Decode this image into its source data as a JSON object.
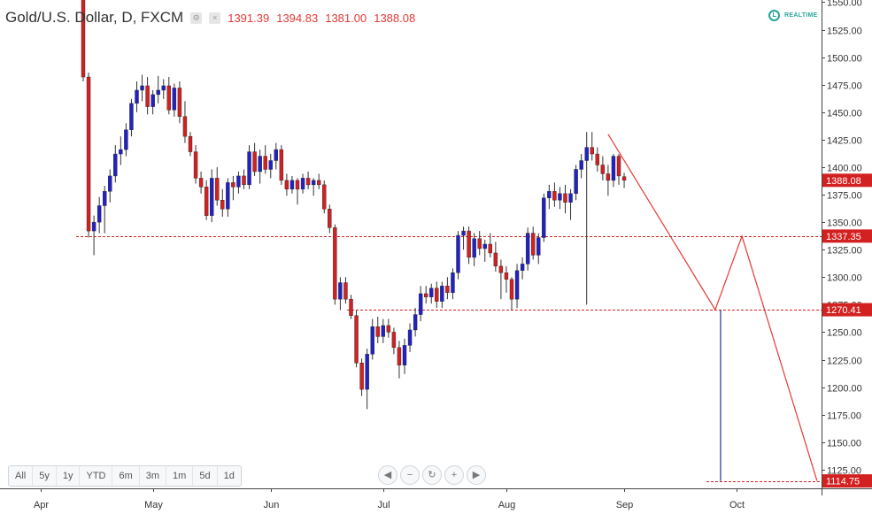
{
  "header": {
    "symbol": "Gold/U.S. Dollar, D, FXCM",
    "open": "1391.39",
    "high": "1394.83",
    "low": "1381.00",
    "close": "1388.08",
    "realtime": "REALTIME"
  },
  "toolbar": {
    "timeframes": [
      "All",
      "5y",
      "1y",
      "YTD",
      "6m",
      "3m",
      "1m",
      "5d",
      "1d"
    ],
    "nav": [
      {
        "name": "scroll-left-icon",
        "glyph": "◀"
      },
      {
        "name": "zoom-out-icon",
        "glyph": "−"
      },
      {
        "name": "reset-icon",
        "glyph": "↻"
      },
      {
        "name": "zoom-in-icon",
        "glyph": "+"
      },
      {
        "name": "scroll-right-icon",
        "glyph": "▶"
      }
    ]
  },
  "chart_data": {
    "type": "candlestick",
    "title": "Gold/U.S. Dollar, D, FXCM",
    "xlabel": "",
    "ylabel": "",
    "ylim": [
      1108,
      1552
    ],
    "y_ticks": [
      1125,
      1150,
      1175,
      1200,
      1225,
      1250,
      1275,
      1300,
      1325,
      1350,
      1375,
      1400,
      1425,
      1450,
      1475,
      1500,
      1525,
      1550
    ],
    "x_ticks": [
      {
        "label": "Apr",
        "index": -8
      },
      {
        "label": "May",
        "index": 13
      },
      {
        "label": "Jun",
        "index": 35
      },
      {
        "label": "Jul",
        "index": 56
      },
      {
        "label": "Aug",
        "index": 79
      },
      {
        "label": "Sep",
        "index": 101
      },
      {
        "label": "Oct",
        "index": 122
      }
    ],
    "price_labels": [
      {
        "label": "1388.08",
        "value": 1388.08
      },
      {
        "label": "1337.35",
        "value": 1337.35
      },
      {
        "label": "1270.41",
        "value": 1270.41
      },
      {
        "label": "1114.75",
        "value": 1114.75
      }
    ],
    "levels": [
      1337.35,
      1270.41,
      1114.75
    ],
    "projection": [
      {
        "index": 98,
        "value": 1430
      },
      {
        "index": 118,
        "value": 1270.41
      },
      {
        "index": 123,
        "value": 1337.35
      },
      {
        "index": 137,
        "value": 1114.75
      }
    ],
    "measure": {
      "index": 119,
      "from": 1270.41,
      "to": 1114.75
    },
    "colors": {
      "up": "#2121c4",
      "down": "#d32020",
      "level": "#d32020",
      "projection": "#e53935",
      "measure": "#2929a3",
      "label_bg": "#d32020"
    },
    "candles": [
      {
        "o": 1563,
        "h": 1570,
        "l": 1478,
        "c": 1482
      },
      {
        "o": 1482,
        "h": 1486,
        "l": 1336,
        "c": 1342
      },
      {
        "o": 1342,
        "h": 1356,
        "l": 1320,
        "c": 1350
      },
      {
        "o": 1350,
        "h": 1373,
        "l": 1340,
        "c": 1365
      },
      {
        "o": 1365,
        "h": 1383,
        "l": 1340,
        "c": 1378
      },
      {
        "o": 1378,
        "h": 1398,
        "l": 1368,
        "c": 1392
      },
      {
        "o": 1392,
        "h": 1420,
        "l": 1386,
        "c": 1412
      },
      {
        "o": 1412,
        "h": 1428,
        "l": 1402,
        "c": 1416
      },
      {
        "o": 1416,
        "h": 1440,
        "l": 1410,
        "c": 1434
      },
      {
        "o": 1434,
        "h": 1462,
        "l": 1428,
        "c": 1458
      },
      {
        "o": 1458,
        "h": 1478,
        "l": 1450,
        "c": 1470
      },
      {
        "o": 1470,
        "h": 1484,
        "l": 1460,
        "c": 1474
      },
      {
        "o": 1474,
        "h": 1482,
        "l": 1448,
        "c": 1455
      },
      {
        "o": 1455,
        "h": 1470,
        "l": 1448,
        "c": 1466
      },
      {
        "o": 1466,
        "h": 1483,
        "l": 1458,
        "c": 1470
      },
      {
        "o": 1470,
        "h": 1480,
        "l": 1462,
        "c": 1474
      },
      {
        "o": 1474,
        "h": 1482,
        "l": 1448,
        "c": 1452
      },
      {
        "o": 1452,
        "h": 1476,
        "l": 1446,
        "c": 1472
      },
      {
        "o": 1472,
        "h": 1478,
        "l": 1440,
        "c": 1446
      },
      {
        "o": 1446,
        "h": 1460,
        "l": 1422,
        "c": 1428
      },
      {
        "o": 1428,
        "h": 1432,
        "l": 1410,
        "c": 1414
      },
      {
        "o": 1414,
        "h": 1420,
        "l": 1385,
        "c": 1390
      },
      {
        "o": 1390,
        "h": 1396,
        "l": 1376,
        "c": 1382
      },
      {
        "o": 1382,
        "h": 1388,
        "l": 1352,
        "c": 1356
      },
      {
        "o": 1356,
        "h": 1398,
        "l": 1350,
        "c": 1390
      },
      {
        "o": 1390,
        "h": 1400,
        "l": 1365,
        "c": 1370
      },
      {
        "o": 1370,
        "h": 1380,
        "l": 1355,
        "c": 1362
      },
      {
        "o": 1362,
        "h": 1390,
        "l": 1355,
        "c": 1386
      },
      {
        "o": 1386,
        "h": 1392,
        "l": 1370,
        "c": 1382
      },
      {
        "o": 1382,
        "h": 1396,
        "l": 1376,
        "c": 1392
      },
      {
        "o": 1392,
        "h": 1398,
        "l": 1380,
        "c": 1384
      },
      {
        "o": 1384,
        "h": 1420,
        "l": 1380,
        "c": 1414
      },
      {
        "o": 1414,
        "h": 1422,
        "l": 1392,
        "c": 1396
      },
      {
        "o": 1396,
        "h": 1416,
        "l": 1385,
        "c": 1410
      },
      {
        "o": 1410,
        "h": 1420,
        "l": 1394,
        "c": 1398
      },
      {
        "o": 1398,
        "h": 1412,
        "l": 1390,
        "c": 1406
      },
      {
        "o": 1406,
        "h": 1422,
        "l": 1398,
        "c": 1416
      },
      {
        "o": 1416,
        "h": 1420,
        "l": 1384,
        "c": 1388
      },
      {
        "o": 1388,
        "h": 1394,
        "l": 1374,
        "c": 1380
      },
      {
        "o": 1380,
        "h": 1392,
        "l": 1376,
        "c": 1388
      },
      {
        "o": 1388,
        "h": 1390,
        "l": 1366,
        "c": 1380
      },
      {
        "o": 1380,
        "h": 1394,
        "l": 1376,
        "c": 1390
      },
      {
        "o": 1390,
        "h": 1396,
        "l": 1380,
        "c": 1384
      },
      {
        "o": 1384,
        "h": 1390,
        "l": 1374,
        "c": 1388
      },
      {
        "o": 1388,
        "h": 1394,
        "l": 1380,
        "c": 1384
      },
      {
        "o": 1384,
        "h": 1388,
        "l": 1358,
        "c": 1362
      },
      {
        "o": 1362,
        "h": 1366,
        "l": 1340,
        "c": 1345
      },
      {
        "o": 1345,
        "h": 1348,
        "l": 1275,
        "c": 1280
      },
      {
        "o": 1280,
        "h": 1300,
        "l": 1270,
        "c": 1295
      },
      {
        "o": 1295,
        "h": 1300,
        "l": 1276,
        "c": 1280
      },
      {
        "o": 1280,
        "h": 1284,
        "l": 1262,
        "c": 1265
      },
      {
        "o": 1265,
        "h": 1270,
        "l": 1218,
        "c": 1222
      },
      {
        "o": 1222,
        "h": 1226,
        "l": 1192,
        "c": 1198
      },
      {
        "o": 1198,
        "h": 1235,
        "l": 1180,
        "c": 1230
      },
      {
        "o": 1230,
        "h": 1262,
        "l": 1225,
        "c": 1255
      },
      {
        "o": 1255,
        "h": 1264,
        "l": 1240,
        "c": 1246
      },
      {
        "o": 1246,
        "h": 1262,
        "l": 1240,
        "c": 1256
      },
      {
        "o": 1256,
        "h": 1262,
        "l": 1245,
        "c": 1250
      },
      {
        "o": 1250,
        "h": 1254,
        "l": 1230,
        "c": 1236
      },
      {
        "o": 1236,
        "h": 1242,
        "l": 1208,
        "c": 1220
      },
      {
        "o": 1220,
        "h": 1244,
        "l": 1212,
        "c": 1238
      },
      {
        "o": 1238,
        "h": 1258,
        "l": 1232,
        "c": 1252
      },
      {
        "o": 1252,
        "h": 1272,
        "l": 1246,
        "c": 1266
      },
      {
        "o": 1266,
        "h": 1292,
        "l": 1260,
        "c": 1285
      },
      {
        "o": 1285,
        "h": 1292,
        "l": 1276,
        "c": 1282
      },
      {
        "o": 1282,
        "h": 1294,
        "l": 1276,
        "c": 1290
      },
      {
        "o": 1290,
        "h": 1296,
        "l": 1272,
        "c": 1278
      },
      {
        "o": 1278,
        "h": 1296,
        "l": 1272,
        "c": 1292
      },
      {
        "o": 1292,
        "h": 1300,
        "l": 1280,
        "c": 1286
      },
      {
        "o": 1286,
        "h": 1308,
        "l": 1280,
        "c": 1304
      },
      {
        "o": 1304,
        "h": 1342,
        "l": 1298,
        "c": 1338
      },
      {
        "o": 1338,
        "h": 1346,
        "l": 1325,
        "c": 1342
      },
      {
        "o": 1342,
        "h": 1346,
        "l": 1312,
        "c": 1318
      },
      {
        "o": 1318,
        "h": 1340,
        "l": 1310,
        "c": 1335
      },
      {
        "o": 1335,
        "h": 1342,
        "l": 1320,
        "c": 1326
      },
      {
        "o": 1326,
        "h": 1334,
        "l": 1314,
        "c": 1330
      },
      {
        "o": 1330,
        "h": 1340,
        "l": 1318,
        "c": 1322
      },
      {
        "o": 1322,
        "h": 1332,
        "l": 1305,
        "c": 1310
      },
      {
        "o": 1310,
        "h": 1316,
        "l": 1280,
        "c": 1304
      },
      {
        "o": 1304,
        "h": 1310,
        "l": 1286,
        "c": 1298
      },
      {
        "o": 1298,
        "h": 1300,
        "l": 1270,
        "c": 1280
      },
      {
        "o": 1280,
        "h": 1312,
        "l": 1272,
        "c": 1306
      },
      {
        "o": 1306,
        "h": 1318,
        "l": 1298,
        "c": 1312
      },
      {
        "o": 1312,
        "h": 1345,
        "l": 1306,
        "c": 1340
      },
      {
        "o": 1340,
        "h": 1346,
        "l": 1316,
        "c": 1320
      },
      {
        "o": 1320,
        "h": 1340,
        "l": 1312,
        "c": 1336
      },
      {
        "o": 1336,
        "h": 1376,
        "l": 1332,
        "c": 1372
      },
      {
        "o": 1372,
        "h": 1384,
        "l": 1362,
        "c": 1378
      },
      {
        "o": 1378,
        "h": 1386,
        "l": 1364,
        "c": 1370
      },
      {
        "o": 1370,
        "h": 1382,
        "l": 1362,
        "c": 1376
      },
      {
        "o": 1376,
        "h": 1384,
        "l": 1358,
        "c": 1368
      },
      {
        "o": 1368,
        "h": 1380,
        "l": 1352,
        "c": 1376
      },
      {
        "o": 1376,
        "h": 1402,
        "l": 1370,
        "c": 1398
      },
      {
        "o": 1398,
        "h": 1412,
        "l": 1390,
        "c": 1406
      },
      {
        "o": 1406,
        "h": 1432,
        "l": 1275,
        "c": 1418
      },
      {
        "o": 1418,
        "h": 1432,
        "l": 1406,
        "c": 1412
      },
      {
        "o": 1412,
        "h": 1418,
        "l": 1396,
        "c": 1402
      },
      {
        "o": 1402,
        "h": 1410,
        "l": 1388,
        "c": 1394
      },
      {
        "o": 1394,
        "h": 1402,
        "l": 1374,
        "c": 1388
      },
      {
        "o": 1388,
        "h": 1412,
        "l": 1382,
        "c": 1410
      },
      {
        "o": 1410,
        "h": 1412,
        "l": 1384,
        "c": 1392
      },
      {
        "o": 1391.39,
        "h": 1394.83,
        "l": 1381.0,
        "c": 1388.08
      }
    ]
  }
}
